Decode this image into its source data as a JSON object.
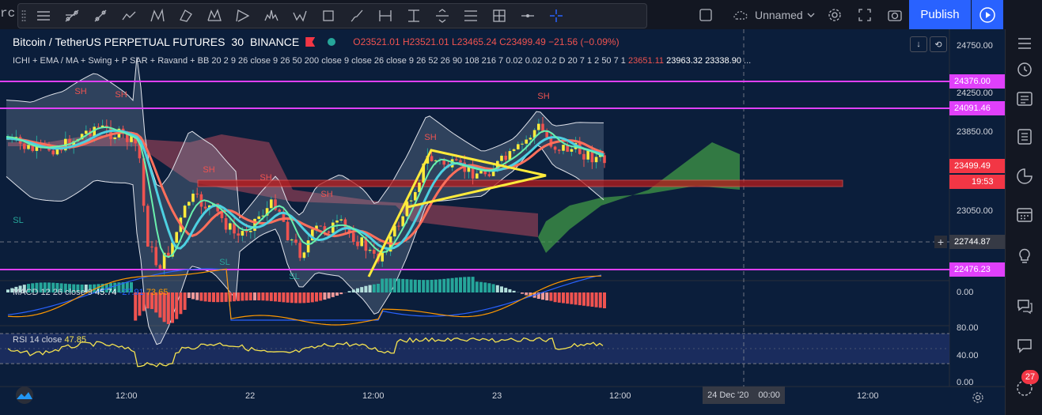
{
  "topbar": {
    "left_cut_text": "rc",
    "layout_name": "Unnamed",
    "publish_label": "Publish"
  },
  "drawing_tools": [
    "menu-icon",
    "trend-line-icon",
    "ray-icon",
    "polyline-icon",
    "abcd-pattern-icon",
    "pitchfork-icon",
    "xabcd-pattern-icon",
    "triangle-pattern-icon",
    "head-shoulders-icon",
    "elliott-wave-icon",
    "rectangle-icon",
    "brush-icon",
    "date-range-icon",
    "price-range-icon",
    "long-short-icon",
    "fib-icon",
    "position-icon",
    "horizontal-ray-icon",
    "crosshair-icon"
  ],
  "legend": {
    "symbol": "Bitcoin / TetherUS PERPETUAL FUTURES",
    "interval": "30",
    "exchange": "BINANCE",
    "open": "O23521.01",
    "high": "H23521.01",
    "low": "L23465.24",
    "close": "C23499.49",
    "change": "−21.56 (−0.09%)"
  },
  "indicator_legend": {
    "text": "ICHI + EMA / MA + Swing + P SAR + Ravand + BB 20 2 9 26 close 9 26 50 200 close 9 close 26 close 9 26 52 26 90 108 216 7 0.02 0.02 0.2 D 20 7 1 2 50 7 1",
    "v1": "23651.11",
    "v2": "23963.32",
    "v3": "23338.90",
    "more": "..."
  },
  "macd_legend": {
    "label": "MACD 12 26 close 9",
    "v1": "45.74",
    "v2": "-27.91",
    "v3": "73.65"
  },
  "rsi_legend": {
    "label": "RSI 14 close",
    "value": "47.85"
  },
  "price_axis": {
    "ticks": [
      "24750.00",
      "24250.00",
      "23850.00",
      "23050.00"
    ],
    "labels": [
      {
        "text": "24376.00",
        "color": "#e040fb"
      },
      {
        "text": "24091.46",
        "color": "#e040fb"
      },
      {
        "text": "23499.49",
        "color": "#f23645"
      },
      {
        "text": "19:53",
        "color": "#f23645"
      },
      {
        "text": "22744.87",
        "color": "#363a45"
      },
      {
        "text": "22476.23",
        "color": "#e040fb"
      }
    ],
    "macd_tick": "0.00",
    "rsi_ticks": [
      "80.00",
      "40.00",
      "0.00"
    ]
  },
  "time_axis": {
    "ticks": [
      "12:00",
      "22",
      "12:00",
      "23",
      "12:00",
      "12:00"
    ],
    "crosshair_date": "24 Dec '20",
    "crosshair_time": "00:00"
  },
  "chart_labels": {
    "sh": "SH",
    "sl": "SL"
  },
  "notifications": "27",
  "colors": {
    "bg": "#0b1e3b",
    "up": "#26a69a",
    "down": "#ef5350",
    "magenta": "#e040fb",
    "yellow": "#ffeb3b",
    "publish": "#2962ff"
  }
}
